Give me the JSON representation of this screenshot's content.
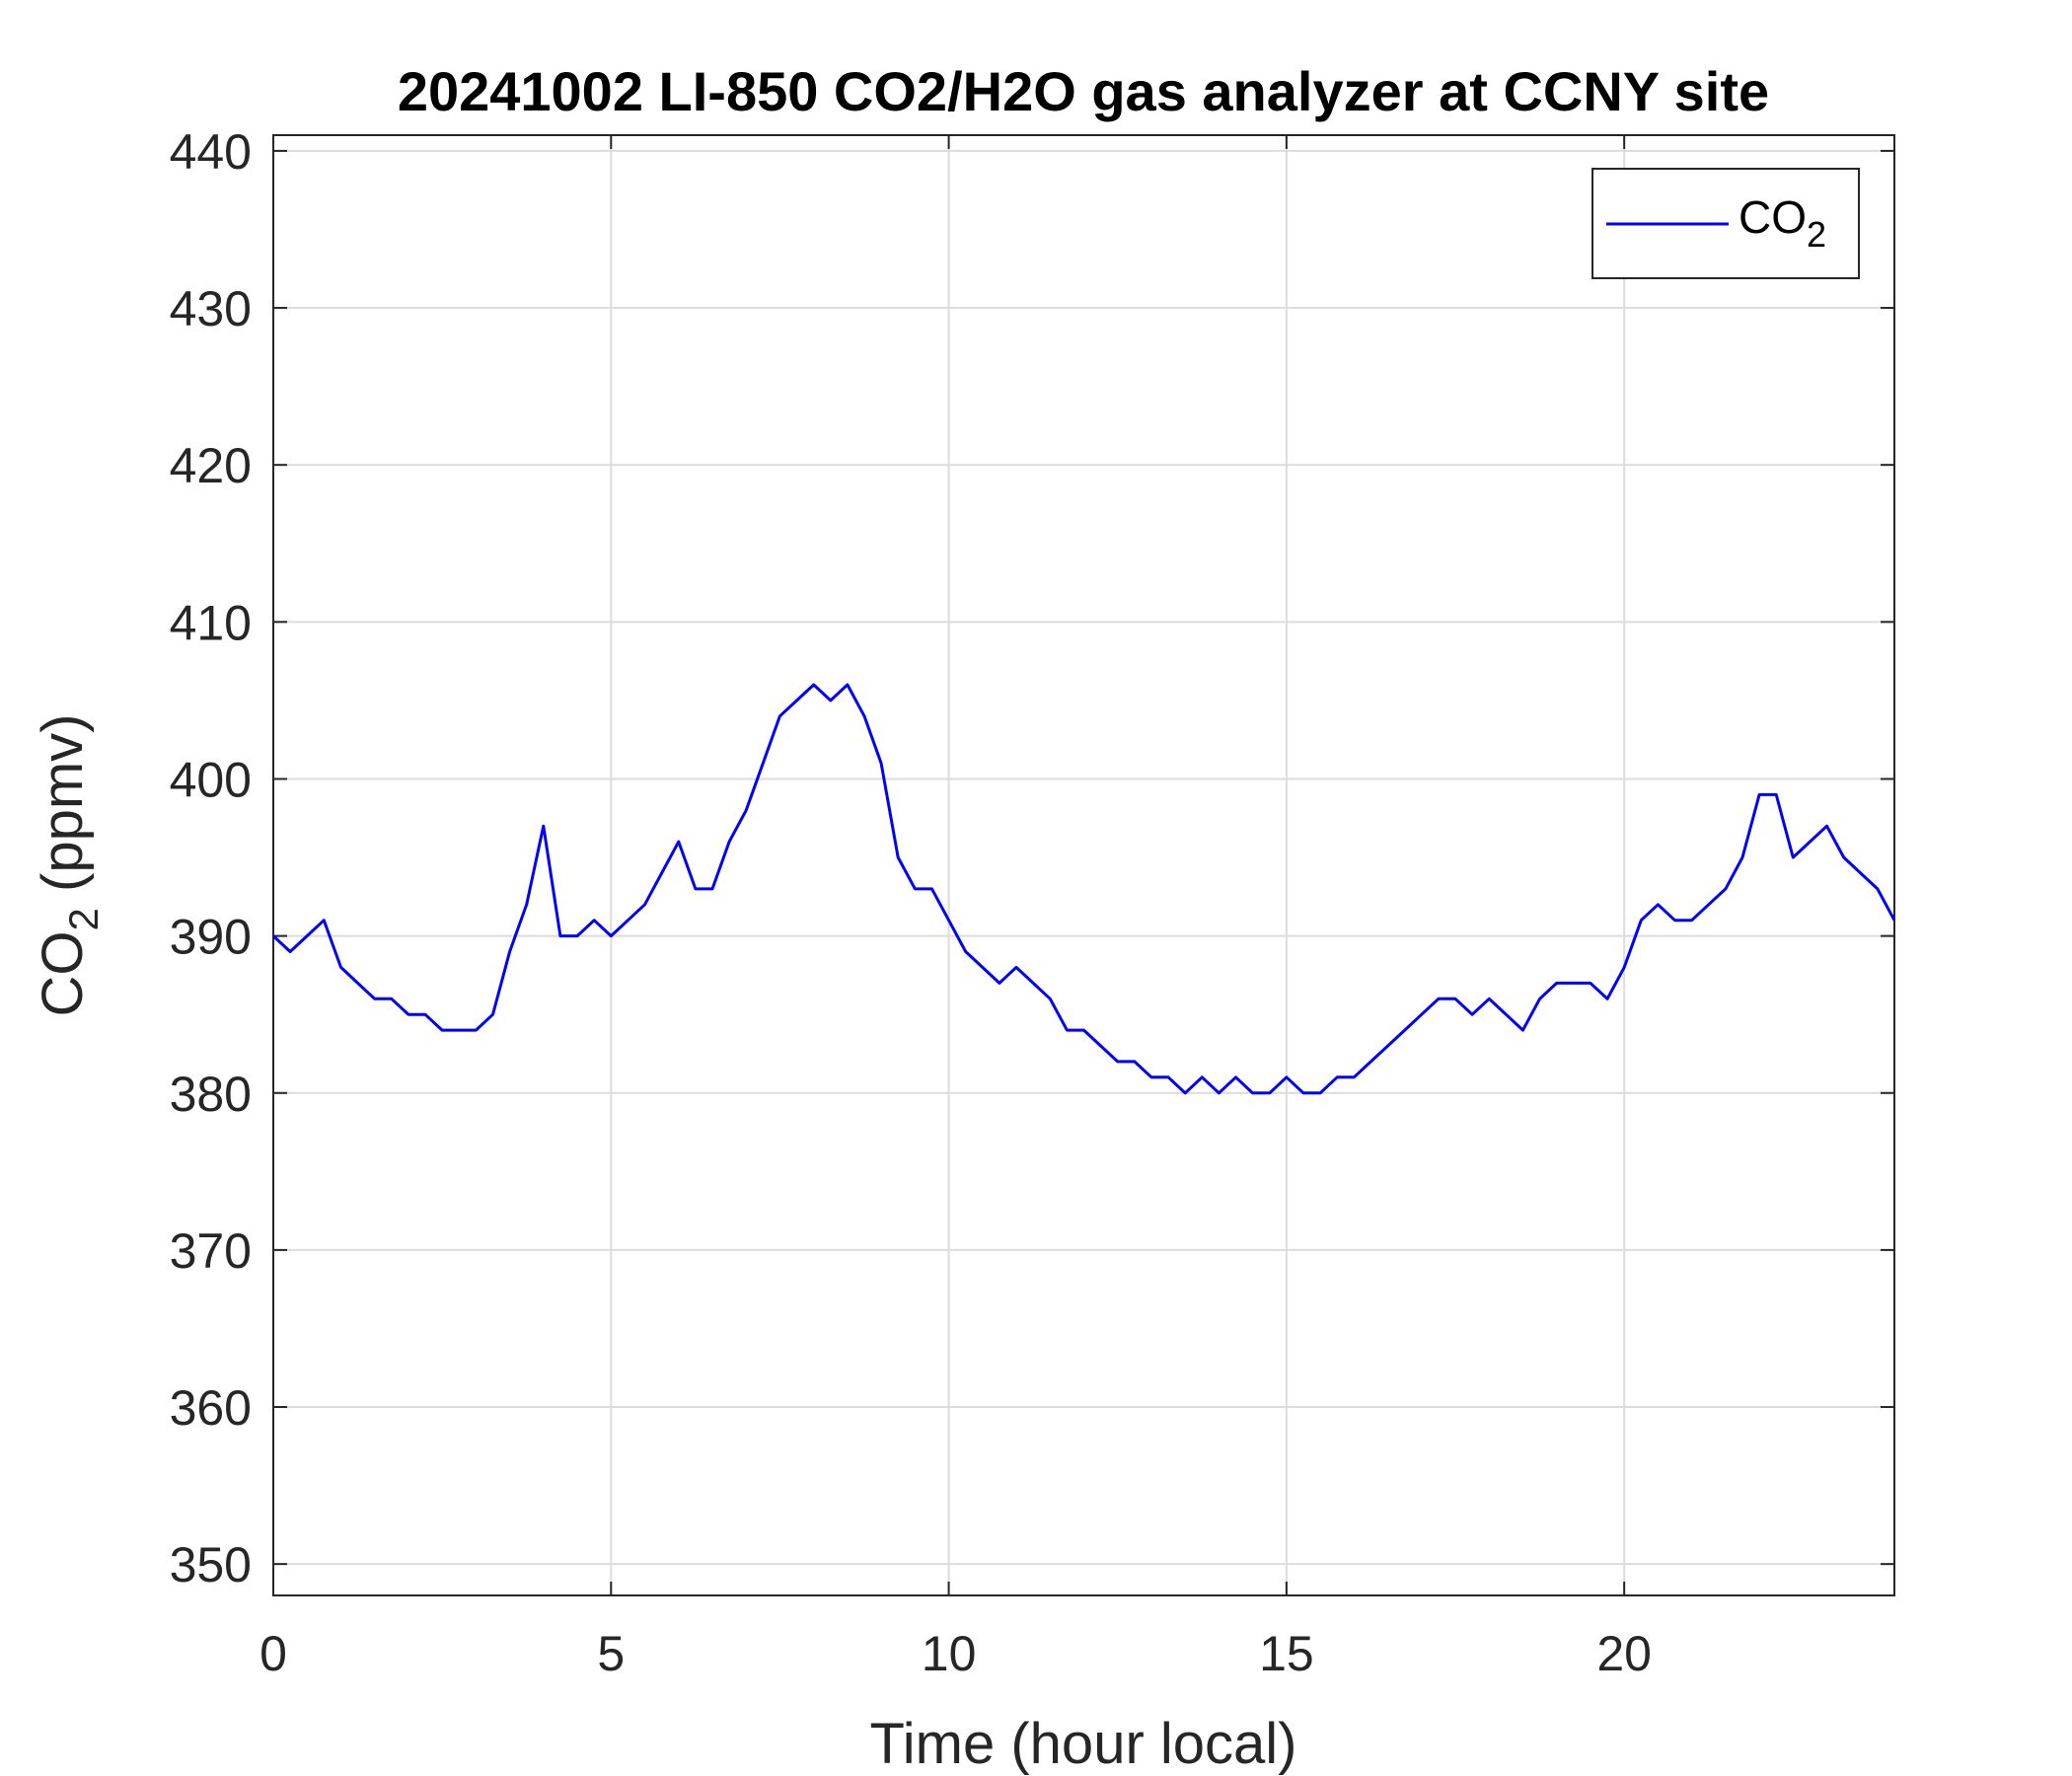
{
  "chart_data": {
    "type": "line",
    "title": "20241002 LI-850 CO2/H2O gas analyzer at CCNY site",
    "xlabel": "Time (hour local)",
    "ylabel_main": "CO",
    "ylabel_sub": "2",
    "ylabel_unit": " (ppmv)",
    "xlim": [
      0,
      24
    ],
    "ylim": [
      348,
      441
    ],
    "xticks": [
      0,
      5,
      10,
      15,
      20
    ],
    "yticks": [
      350,
      360,
      370,
      380,
      390,
      400,
      410,
      420,
      430,
      440
    ],
    "grid": true,
    "legend_position": "top-right",
    "legend_label_main": "CO",
    "legend_label_sub": "2",
    "color": "#0000ff",
    "series": [
      {
        "x": [
          0,
          0.25,
          0.5,
          0.75,
          1,
          1.25,
          1.5,
          1.75,
          2,
          2.25,
          2.5,
          2.75,
          3,
          3.25,
          3.5,
          3.75,
          4,
          4.25,
          4.5,
          4.75,
          5,
          5.25,
          5.5,
          5.75,
          6,
          6.25,
          6.5,
          6.75,
          7,
          7.25,
          7.5,
          7.75,
          8,
          8.25,
          8.5,
          8.75,
          9,
          9.25,
          9.5,
          9.75,
          10,
          10.25,
          10.5,
          10.75,
          11,
          11.25,
          11.5,
          11.75,
          12,
          12.25,
          12.5,
          12.75,
          13,
          13.25,
          13.5,
          13.75,
          14,
          14.25,
          14.5,
          14.75,
          15,
          15.25,
          15.5,
          15.75,
          16,
          16.25,
          16.5,
          16.75,
          17,
          17.25,
          17.5,
          17.75,
          18,
          18.25,
          18.5,
          18.75,
          19,
          19.25,
          19.5,
          19.75,
          20,
          20.25,
          20.5,
          20.75,
          21,
          21.25,
          21.5,
          21.75,
          22,
          22.25,
          22.5,
          22.75,
          23,
          23.25,
          23.5,
          23.75,
          24
        ],
        "y": [
          390,
          389,
          390,
          391,
          388,
          387,
          386,
          386,
          385,
          385,
          384,
          384,
          384,
          385,
          389,
          392,
          397,
          390,
          390,
          391,
          390,
          391,
          392,
          394,
          396,
          393,
          393,
          396,
          398,
          401,
          404,
          405,
          406,
          405,
          406,
          404,
          401,
          395,
          393,
          393,
          391,
          389,
          388,
          387,
          388,
          387,
          386,
          384,
          384,
          383,
          382,
          382,
          381,
          381,
          380,
          381,
          380,
          381,
          380,
          380,
          381,
          380,
          380,
          381,
          381,
          382,
          383,
          384,
          385,
          386,
          386,
          385,
          386,
          385,
          384,
          386,
          387,
          387,
          387,
          386,
          388,
          391,
          392,
          391,
          391,
          392,
          393,
          395,
          399,
          399,
          395,
          396,
          397,
          395,
          394,
          393,
          391
        ]
      }
    ]
  }
}
